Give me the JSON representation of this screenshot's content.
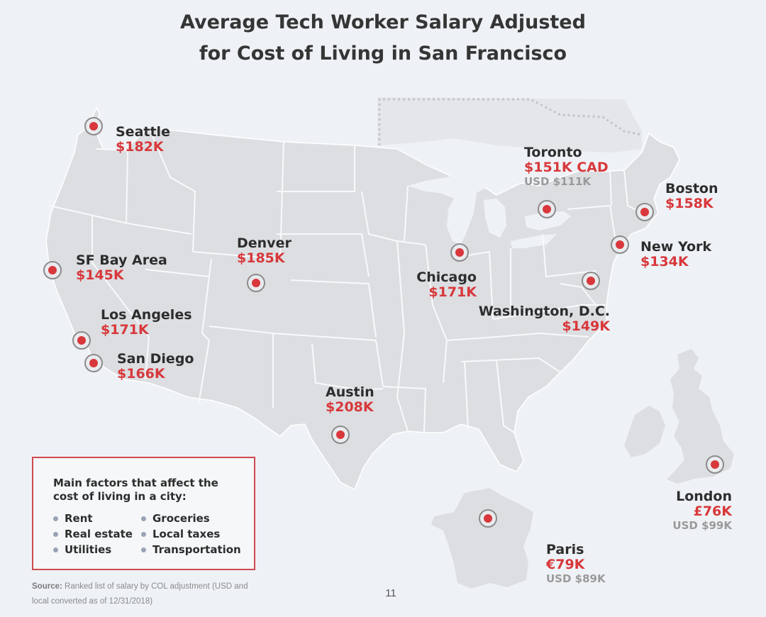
{
  "title": {
    "line1": "Average Tech Worker Salary Adjusted",
    "line2": "for Cost of Living in San Francisco"
  },
  "cities": {
    "seattle": {
      "name": "Seattle",
      "salary": "$182K"
    },
    "sf": {
      "name": "SF Bay Area",
      "salary": "$145K"
    },
    "la": {
      "name": "Los Angeles",
      "salary": "$171K"
    },
    "sandiego": {
      "name": "San Diego",
      "salary": "$166K"
    },
    "denver": {
      "name": "Denver",
      "salary": "$185K"
    },
    "austin": {
      "name": "Austin",
      "salary": "$208K"
    },
    "chicago": {
      "name": "Chicago",
      "salary": "$171K"
    },
    "toronto": {
      "name": "Toronto",
      "salary": "$151K CAD",
      "usd": "USD $111K"
    },
    "boston": {
      "name": "Boston",
      "salary": "$158K"
    },
    "newyork": {
      "name": "New York",
      "salary": "$134K"
    },
    "washington": {
      "name": "Washington, D.C.",
      "salary": "$149K"
    },
    "london": {
      "name": "London",
      "salary": "£76K",
      "usd": "USD $99K"
    },
    "paris": {
      "name": "Paris",
      "salary": "€79K",
      "usd": "USD $89K"
    }
  },
  "legend": {
    "heading": "Main factors that affect the cost of living in a city:",
    "col1": [
      "Rent",
      "Real estate",
      "Utilities"
    ],
    "col2": [
      "Groceries",
      "Local taxes",
      "Transportation"
    ]
  },
  "source": {
    "label": "Source:",
    "text": "Ranked list of salary by COL adjustment (USD and local converted as of 12/31/2018)"
  },
  "page_number": "11",
  "colors": {
    "accent_red": "#d8383b",
    "land": "#dcdee2",
    "background": "#eef2f6"
  }
}
